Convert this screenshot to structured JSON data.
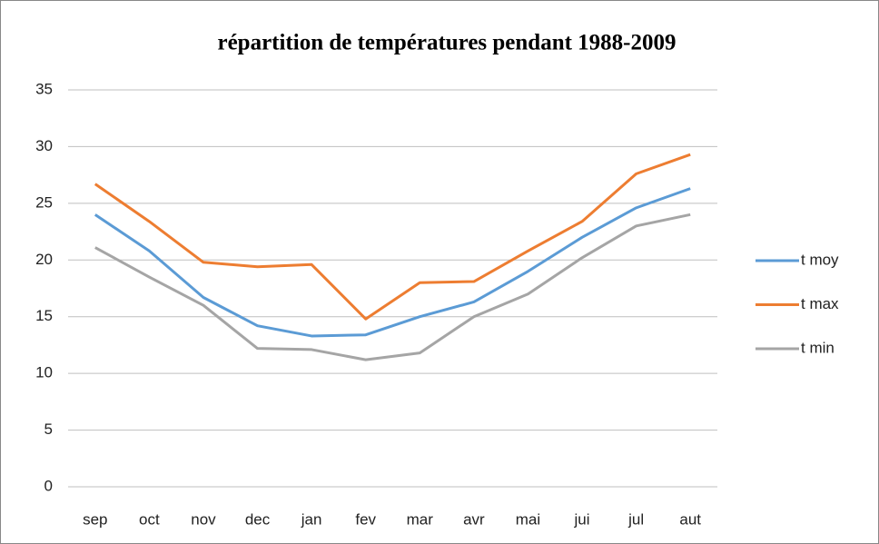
{
  "chart_data": {
    "type": "line",
    "title": "répartition de températures pendant 1988-2009",
    "categories": [
      "sep",
      "oct",
      "nov",
      "dec",
      "jan",
      "fev",
      "mar",
      "avr",
      "mai",
      "jui",
      "jul",
      "aut"
    ],
    "series": [
      {
        "name": "t moy",
        "color": "#5b9bd5",
        "values": [
          24.0,
          20.8,
          16.7,
          14.2,
          13.3,
          13.4,
          15.0,
          16.3,
          19.0,
          22.0,
          24.6,
          26.3
        ]
      },
      {
        "name": "t max",
        "color": "#ed7d31",
        "values": [
          26.7,
          23.4,
          19.8,
          19.4,
          19.6,
          14.8,
          18.0,
          18.1,
          20.8,
          23.4,
          27.6,
          29.3
        ]
      },
      {
        "name": "t min",
        "color": "#a5a5a5",
        "values": [
          21.1,
          18.5,
          16.0,
          12.2,
          12.1,
          11.2,
          11.8,
          15.0,
          17.0,
          20.2,
          23.0,
          24.0
        ]
      }
    ],
    "ylim": [
      0,
      35
    ],
    "yticks": [
      0,
      5,
      10,
      15,
      20,
      25,
      30,
      35
    ],
    "grid": true,
    "legend": "right"
  }
}
